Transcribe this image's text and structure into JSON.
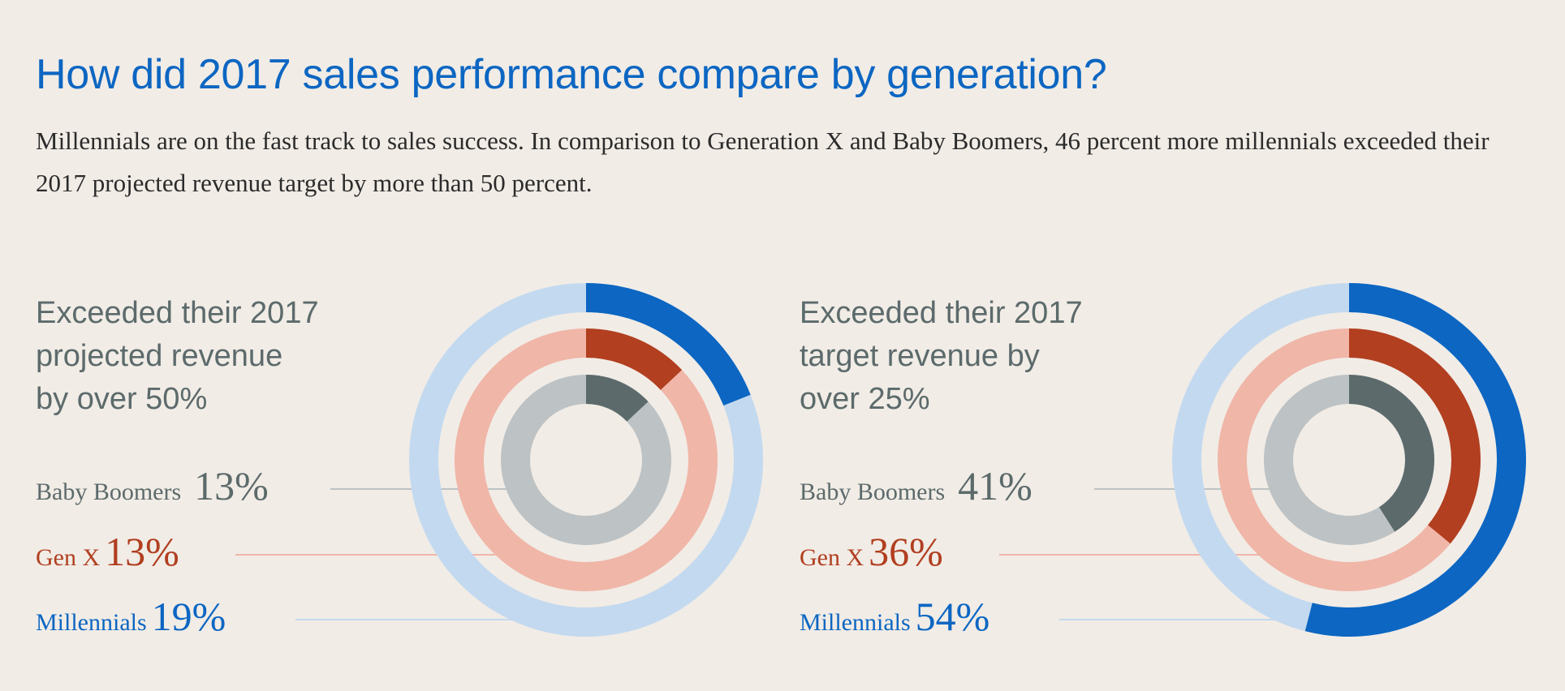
{
  "header": {
    "title": "How did 2017 sales performance compare by generation?",
    "subtitle": "Millennials are on the fast track to sales success. In comparison to Generation X and Baby Boomers, 46 percent more millennials exceeded their 2017 projected revenue target by more than 50 percent."
  },
  "colors": {
    "background": "#f1ece6",
    "title": "#0c66c2",
    "baby_boomers": "#5c6a6b",
    "baby_boomers_track": "#bdc2c4",
    "gen_x": "#b13f20",
    "gen_x_track": "#f0b6a8",
    "millennials": "#0c66c2",
    "millennials_track": "#c3d9ef",
    "heading": "#5c6a6b"
  },
  "chart_data": [
    {
      "type": "radial-bar",
      "title": "Exceeded their 2017 projected revenue by over 50%",
      "title_lines": [
        "Exceeded their 2017",
        "projected revenue",
        "by over 50%"
      ],
      "series": [
        {
          "name": "Baby Boomers",
          "value": 13,
          "label": "13%"
        },
        {
          "name": "Gen X",
          "value": 13,
          "label": "13%"
        },
        {
          "name": "Millennials",
          "value": 19,
          "label": "19%"
        }
      ],
      "max": 100
    },
    {
      "type": "radial-bar",
      "title": "Exceeded their 2017 target revenue by over 25%",
      "title_lines": [
        "Exceeded their 2017",
        "target revenue by",
        "over 25%"
      ],
      "series": [
        {
          "name": "Baby Boomers",
          "value": 41,
          "label": "41%"
        },
        {
          "name": "Gen X",
          "value": 36,
          "label": "36%"
        },
        {
          "name": "Millennials",
          "value": 54,
          "label": "54%"
        }
      ],
      "max": 100
    }
  ]
}
